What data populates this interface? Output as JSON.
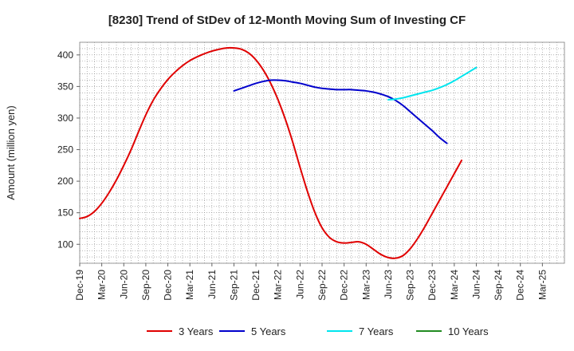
{
  "chart_data": {
    "type": "line",
    "title": "[8230]  Trend of StDev of 12-Month Moving Sum of Investing CF",
    "ylabel": "Amount (million yen)",
    "xlabel": "",
    "ylim": [
      70,
      420
    ],
    "yticks": [
      100,
      150,
      200,
      250,
      300,
      350,
      400
    ],
    "xticks": [
      "Dec-19",
      "Mar-20",
      "Jun-20",
      "Sep-20",
      "Dec-20",
      "Mar-21",
      "Jun-21",
      "Sep-21",
      "Dec-21",
      "Mar-22",
      "Jun-22",
      "Sep-22",
      "Dec-22",
      "Mar-23",
      "Jun-23",
      "Sep-23",
      "Dec-23",
      "Mar-24",
      "Jun-24",
      "Sep-24",
      "Dec-24",
      "Mar-25"
    ],
    "grid": true,
    "legend_position": "bottom",
    "series": [
      {
        "name": "3 Years",
        "color": "#e00000",
        "points": [
          [
            "Dec-19",
            141
          ],
          [
            "Jan-20",
            144
          ],
          [
            "Feb-20",
            152
          ],
          [
            "Mar-20",
            165
          ],
          [
            "Apr-20",
            182
          ],
          [
            "May-20",
            202
          ],
          [
            "Jun-20",
            225
          ],
          [
            "Jul-20",
            250
          ],
          [
            "Aug-20",
            278
          ],
          [
            "Sep-20",
            305
          ],
          [
            "Oct-20",
            328
          ],
          [
            "Nov-20",
            346
          ],
          [
            "Dec-20",
            361
          ],
          [
            "Jan-21",
            373
          ],
          [
            "Feb-21",
            383
          ],
          [
            "Mar-21",
            391
          ],
          [
            "Apr-21",
            397
          ],
          [
            "May-21",
            402
          ],
          [
            "Jun-21",
            406
          ],
          [
            "Jul-21",
            409
          ],
          [
            "Aug-21",
            411
          ],
          [
            "Sep-21",
            411
          ],
          [
            "Oct-21",
            409
          ],
          [
            "Nov-21",
            403
          ],
          [
            "Dec-21",
            392
          ],
          [
            "Jan-22",
            376
          ],
          [
            "Feb-22",
            355
          ],
          [
            "Mar-22",
            329
          ],
          [
            "Apr-22",
            298
          ],
          [
            "May-22",
            262
          ],
          [
            "Jun-22",
            222
          ],
          [
            "Jul-22",
            184
          ],
          [
            "Aug-22",
            151
          ],
          [
            "Sep-22",
            126
          ],
          [
            "Oct-22",
            111
          ],
          [
            "Nov-22",
            104
          ],
          [
            "Dec-22",
            102
          ],
          [
            "Jan-23",
            103
          ],
          [
            "Feb-23",
            104
          ],
          [
            "Mar-23",
            100
          ],
          [
            "Apr-23",
            92
          ],
          [
            "May-23",
            84
          ],
          [
            "Jun-23",
            79
          ],
          [
            "Jul-23",
            78
          ],
          [
            "Aug-23",
            82
          ],
          [
            "Sep-23",
            93
          ],
          [
            "Oct-23",
            109
          ],
          [
            "Nov-23",
            128
          ],
          [
            "Dec-23",
            149
          ],
          [
            "Jan-24",
            170
          ],
          [
            "Feb-24",
            191
          ],
          [
            "Mar-24",
            212
          ],
          [
            "Apr-24",
            233
          ]
        ]
      },
      {
        "name": "5 Years",
        "color": "#0000cc",
        "points": [
          [
            "Sep-21",
            343
          ],
          [
            "Oct-21",
            347
          ],
          [
            "Nov-21",
            351
          ],
          [
            "Dec-21",
            355
          ],
          [
            "Jan-22",
            358
          ],
          [
            "Feb-22",
            360
          ],
          [
            "Mar-22",
            360
          ],
          [
            "Apr-22",
            359
          ],
          [
            "May-22",
            357
          ],
          [
            "Jun-22",
            355
          ],
          [
            "Jul-22",
            352
          ],
          [
            "Aug-22",
            349
          ],
          [
            "Sep-22",
            347
          ],
          [
            "Oct-22",
            346
          ],
          [
            "Nov-22",
            345
          ],
          [
            "Dec-22",
            345
          ],
          [
            "Jan-23",
            345
          ],
          [
            "Feb-23",
            344
          ],
          [
            "Mar-23",
            343
          ],
          [
            "Apr-23",
            341
          ],
          [
            "May-23",
            338
          ],
          [
            "Jun-23",
            334
          ],
          [
            "Jul-23",
            328
          ],
          [
            "Aug-23",
            320
          ],
          [
            "Sep-23",
            310
          ],
          [
            "Oct-23",
            300
          ],
          [
            "Nov-23",
            290
          ],
          [
            "Dec-23",
            280
          ],
          [
            "Jan-24",
            269
          ],
          [
            "Feb-24",
            260
          ]
        ]
      },
      {
        "name": "7 Years",
        "color": "#00e5ee",
        "points": [
          [
            "Jun-23",
            329
          ],
          [
            "Jul-23",
            330
          ],
          [
            "Aug-23",
            332
          ],
          [
            "Sep-23",
            335
          ],
          [
            "Oct-23",
            338
          ],
          [
            "Nov-23",
            341
          ],
          [
            "Dec-23",
            344
          ],
          [
            "Jan-24",
            348
          ],
          [
            "Feb-24",
            353
          ],
          [
            "Mar-24",
            359
          ],
          [
            "Apr-24",
            366
          ],
          [
            "May-24",
            373
          ],
          [
            "Jun-24",
            380
          ]
        ]
      },
      {
        "name": "10 Years",
        "color": "#228b22",
        "points": []
      }
    ]
  }
}
